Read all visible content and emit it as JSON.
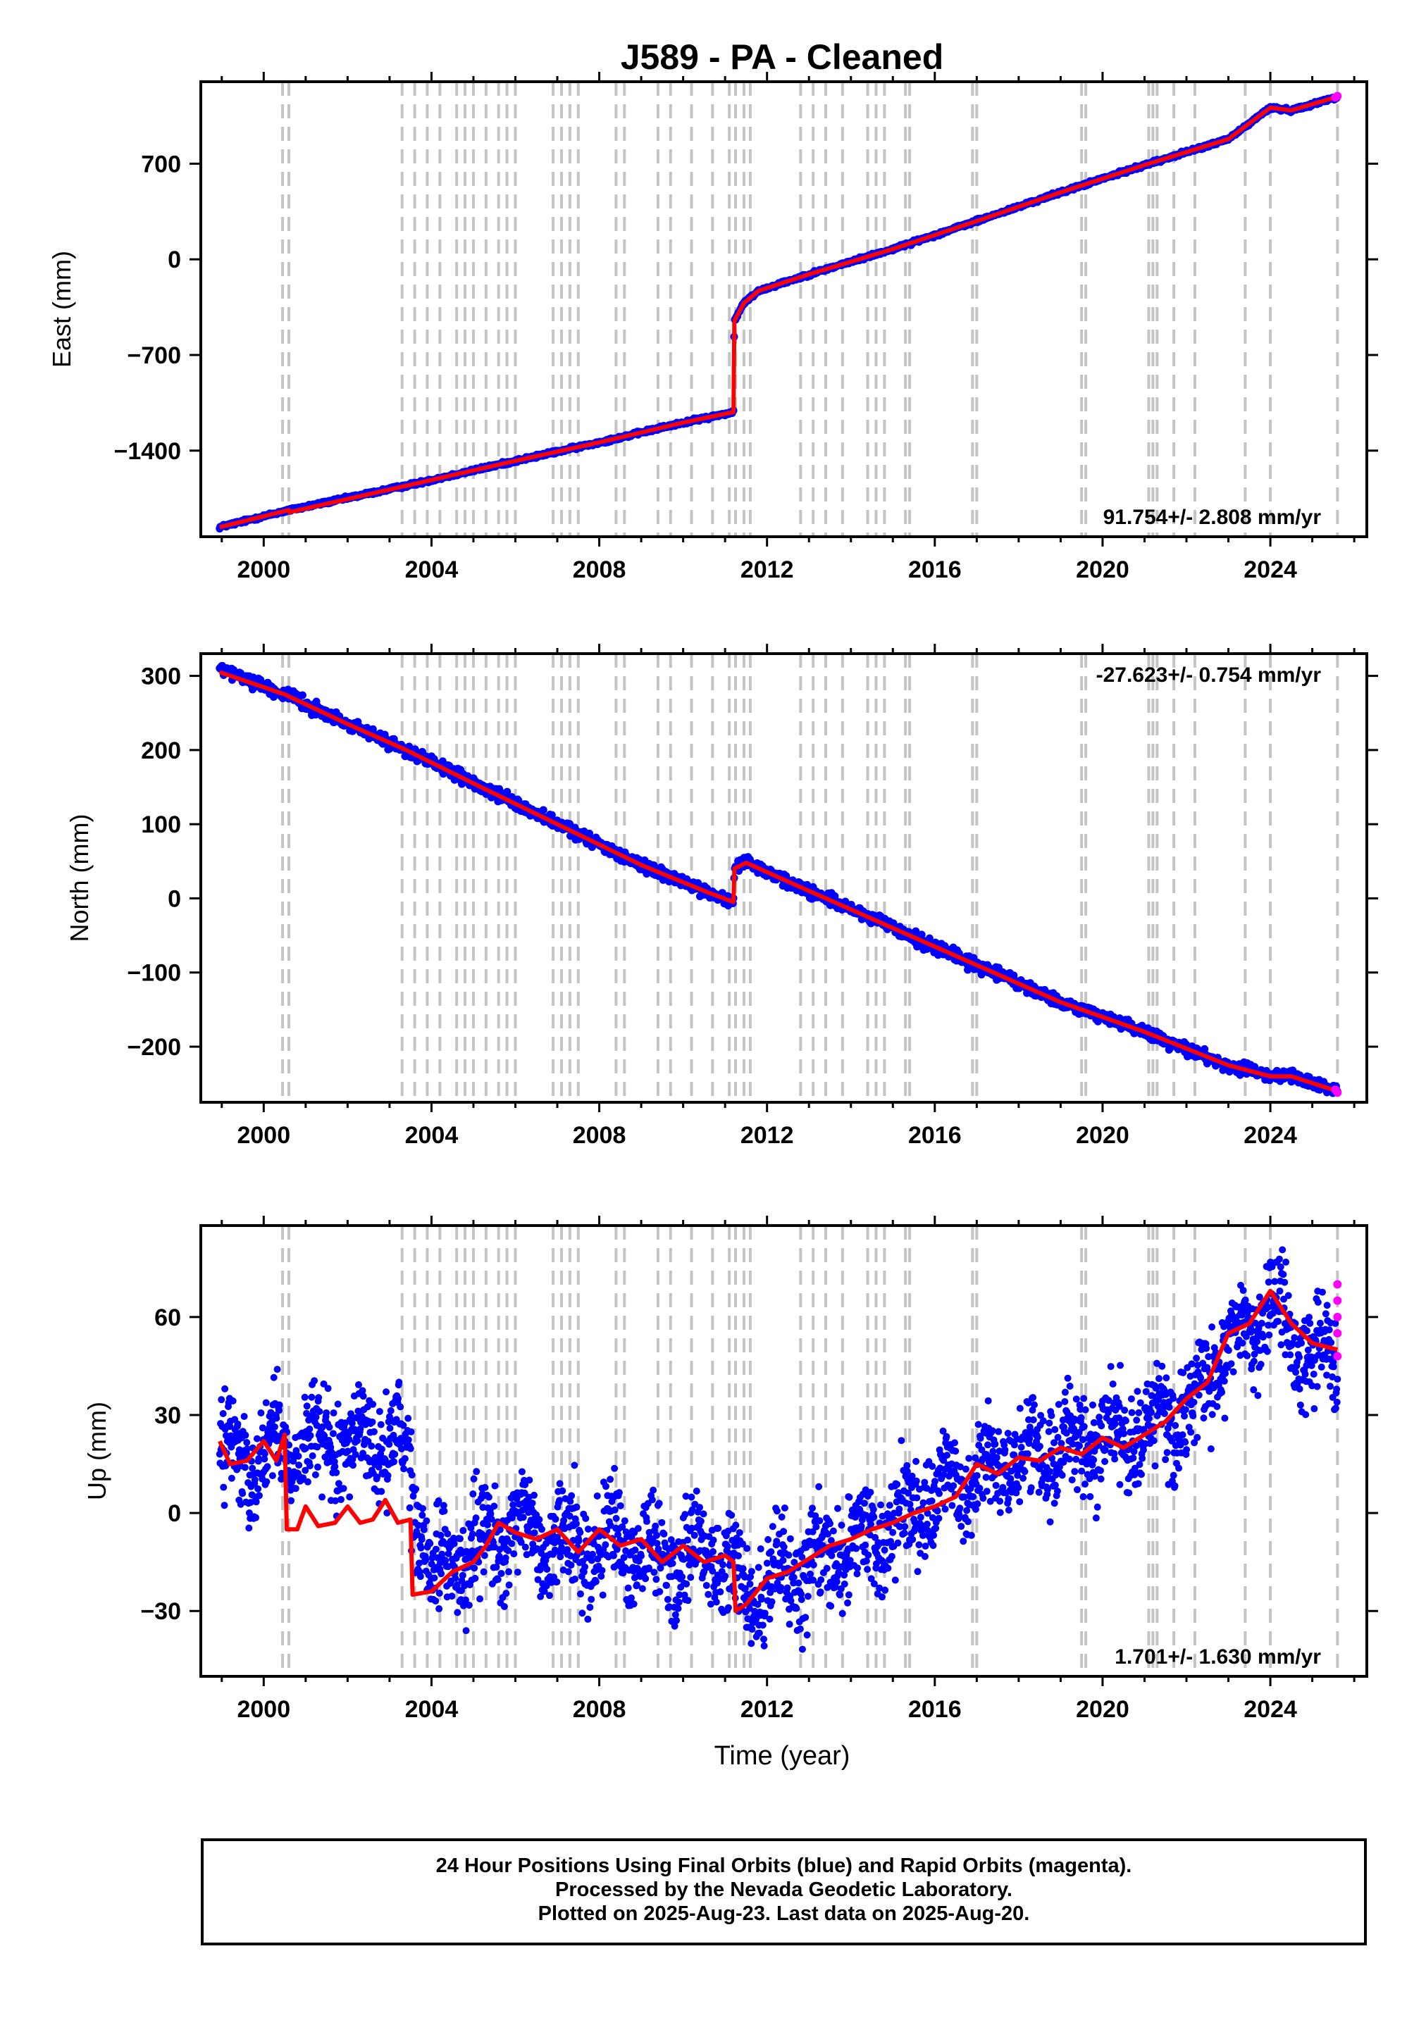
{
  "chart_data": {
    "type": "scatter",
    "title": "J589  - PA - Cleaned",
    "xlabel": "Time (year)",
    "xticks": [
      "2000",
      "2004",
      "2008",
      "2012",
      "2016",
      "2020",
      "2024"
    ],
    "xlim": [
      1998.5,
      2026.3
    ],
    "events": [
      2000.45,
      2000.6,
      2003.3,
      2003.6,
      2003.9,
      2004.2,
      2004.6,
      2004.8,
      2005.0,
      2005.3,
      2005.6,
      2005.8,
      2006.0,
      2006.9,
      2007.1,
      2007.3,
      2007.5,
      2008.4,
      2008.6,
      2009.4,
      2009.7,
      2010.2,
      2010.7,
      2011.1,
      2011.25,
      2011.45,
      2011.6,
      2012.8,
      2013.1,
      2013.4,
      2013.8,
      2014.4,
      2014.6,
      2014.8,
      2015.3,
      2015.4,
      2016.9,
      2017.0,
      2019.5,
      2019.6,
      2021.1,
      2021.2,
      2021.3,
      2021.7,
      2022.2,
      2023.4,
      2024.0,
      2025.6
    ],
    "panels": [
      {
        "ylabel": "East (mm)",
        "yticks": [
          700,
          0,
          -700,
          -1400
        ],
        "ylim": [
          -2030,
          1300
        ],
        "rate": "91.754+/- 2.808 mm/yr",
        "rate_position": "bottom-right",
        "final_series": {
          "name": "Final Orbits",
          "color": "#0000ff",
          "x": [
            1998.95,
            2000.6,
            2000.62,
            2003.5,
            2006.0,
            2008.0,
            2010.0,
            2011.2,
            2011.22,
            2011.45,
            2011.8,
            2013.0,
            2015.0,
            2017.0,
            2019.0,
            2021.0,
            2023.0,
            2024.0,
            2024.5,
            2025.6
          ],
          "y": [
            -1960,
            -1835,
            -1835,
            -1650,
            -1475,
            -1340,
            -1195,
            -1118,
            -450,
            -320,
            -230,
            -110,
            75,
            280,
            490,
            690,
            880,
            1110,
            1090,
            1190
          ]
        },
        "model_series": {
          "name": "",
          "color": "#ff0000",
          "x": [
            1998.95,
            2000.6,
            2000.62,
            2003.5,
            2006.0,
            2008.0,
            2010.0,
            2011.2,
            2011.22,
            2011.45,
            2011.8,
            2013.0,
            2015.0,
            2017.0,
            2019.0,
            2021.0,
            2023.0,
            2024.0,
            2024.5,
            2025.6
          ],
          "y": [
            -1960,
            -1835,
            -1850,
            -1650,
            -1475,
            -1340,
            -1195,
            -1118,
            -450,
            -320,
            -230,
            -110,
            75,
            280,
            490,
            690,
            880,
            1110,
            1090,
            1190
          ]
        },
        "rapid_series": {
          "name": "Rapid Orbits",
          "color": "#ff00ff",
          "x": [
            2025.55,
            2025.6
          ],
          "y": [
            1185,
            1195
          ]
        }
      },
      {
        "ylabel": "North (mm)",
        "yticks": [
          300,
          200,
          100,
          0,
          -100,
          -200
        ],
        "ylim": [
          -275,
          330
        ],
        "rate": "-27.623+/- 0.754 mm/yr",
        "rate_position": "top-right",
        "final_series": {
          "name": "Final Orbits",
          "color": "#0000ff",
          "x": [
            1998.95,
            2000.5,
            2002.0,
            2003.4,
            2005.0,
            2007.0,
            2009.0,
            2010.5,
            2011.2,
            2011.22,
            2011.5,
            2013.0,
            2015.0,
            2017.0,
            2019.0,
            2021.0,
            2023.0,
            2024.0,
            2024.5,
            2025.6
          ],
          "y": [
            310,
            275,
            235,
            200,
            155,
            100,
            45,
            10,
            -5,
            40,
            48,
            10,
            -40,
            -90,
            -140,
            -180,
            -225,
            -240,
            -240,
            -260
          ]
        },
        "model_series": {
          "name": "",
          "color": "#ff0000",
          "x": [
            1998.95,
            2000.5,
            2002.0,
            2003.4,
            2005.0,
            2007.0,
            2009.0,
            2010.5,
            2011.2,
            2011.22,
            2011.5,
            2013.0,
            2015.0,
            2017.0,
            2019.0,
            2021.0,
            2023.0,
            2024.0,
            2024.5,
            2025.6
          ],
          "y": [
            305,
            275,
            235,
            200,
            155,
            100,
            45,
            10,
            -5,
            40,
            48,
            10,
            -40,
            -90,
            -140,
            -180,
            -225,
            -240,
            -240,
            -260
          ]
        },
        "rapid_series": {
          "name": "Rapid Orbits",
          "color": "#ff00ff",
          "x": [
            2025.55,
            2025.6
          ],
          "y": [
            -258,
            -262
          ]
        }
      },
      {
        "ylabel": "Up (mm)",
        "yticks": [
          60,
          30,
          0,
          -30
        ],
        "ylim": [
          -50,
          88
        ],
        "rate": "1.701+/- 1.630 mm/yr",
        "rate_position": "bottom-right",
        "final_series": {
          "name": "Final Orbits",
          "color": "#0000ff",
          "x": [
            1998.95,
            1999.5,
            2000.0,
            2000.5,
            2001.5,
            2002.5,
            2003.3,
            2004.0,
            2005.0,
            2006.0,
            2007.0,
            2008.0,
            2009.0,
            2010.0,
            2011.0,
            2011.5,
            2012.0,
            2013.0,
            2014.0,
            2015.0,
            2016.0,
            2017.0,
            2018.0,
            2019.0,
            2020.0,
            2021.0,
            2022.0,
            2023.0,
            2023.5,
            2024.0,
            2024.5,
            2025.0,
            2025.6
          ],
          "y": [
            20,
            15,
            18,
            20,
            20,
            22,
            20,
            -18,
            -12,
            -5,
            -8,
            -10,
            -12,
            -13,
            -12,
            -28,
            -22,
            -15,
            -10,
            -5,
            5,
            12,
            17,
            20,
            22,
            25,
            30,
            52,
            55,
            65,
            55,
            48,
            45
          ]
        },
        "model_series": {
          "name": "",
          "color": "#ff0000",
          "x": [
            1998.95,
            1999.2,
            1999.6,
            2000.0,
            2000.3,
            2000.5,
            2000.55,
            2000.8,
            2001.0,
            2001.3,
            2001.7,
            2002.0,
            2002.3,
            2002.6,
            2002.9,
            2003.2,
            2003.5,
            2003.55,
            2004.0,
            2004.5,
            2005.0,
            2005.3,
            2005.6,
            2006.0,
            2006.5,
            2007.0,
            2007.5,
            2008.0,
            2008.5,
            2009.0,
            2009.5,
            2010.0,
            2010.5,
            2011.0,
            2011.2,
            2011.25,
            2011.5,
            2012.0,
            2012.5,
            2013.0,
            2013.5,
            2014.0,
            2014.5,
            2015.0,
            2015.5,
            2016.0,
            2016.5,
            2017.0,
            2017.5,
            2018.0,
            2018.5,
            2019.0,
            2019.5,
            2020.0,
            2020.5,
            2021.0,
            2021.5,
            2022.0,
            2022.5,
            2023.0,
            2023.5,
            2024.0,
            2024.5,
            2025.0,
            2025.6
          ],
          "y": [
            22,
            15,
            16,
            22,
            16,
            24,
            -5,
            -5,
            2,
            -4,
            -3,
            2,
            -3,
            -2,
            4,
            -3,
            -2,
            -25,
            -24,
            -18,
            -15,
            -10,
            -3,
            -6,
            -8,
            -5,
            -12,
            -5,
            -10,
            -8,
            -15,
            -10,
            -15,
            -13,
            -15,
            -30,
            -28,
            -20,
            -18,
            -14,
            -10,
            -8,
            -5,
            -3,
            0,
            2,
            5,
            15,
            12,
            17,
            16,
            20,
            18,
            23,
            20,
            24,
            28,
            35,
            40,
            55,
            58,
            68,
            58,
            52,
            50
          ]
        },
        "rapid_series": {
          "name": "Rapid Orbits",
          "color": "#ff00ff",
          "x": [
            2025.6,
            2025.6,
            2025.6,
            2025.6,
            2025.6
          ],
          "y": [
            48,
            55,
            60,
            65,
            70
          ]
        }
      }
    ]
  },
  "footer": {
    "line1": "24 Hour Positions Using Final Orbits (blue) and Rapid Orbits (magenta).",
    "line2": "Processed by the Nevada Geodetic Laboratory.",
    "line3": "Plotted on 2025-Aug-23. Last data on 2025-Aug-20."
  }
}
